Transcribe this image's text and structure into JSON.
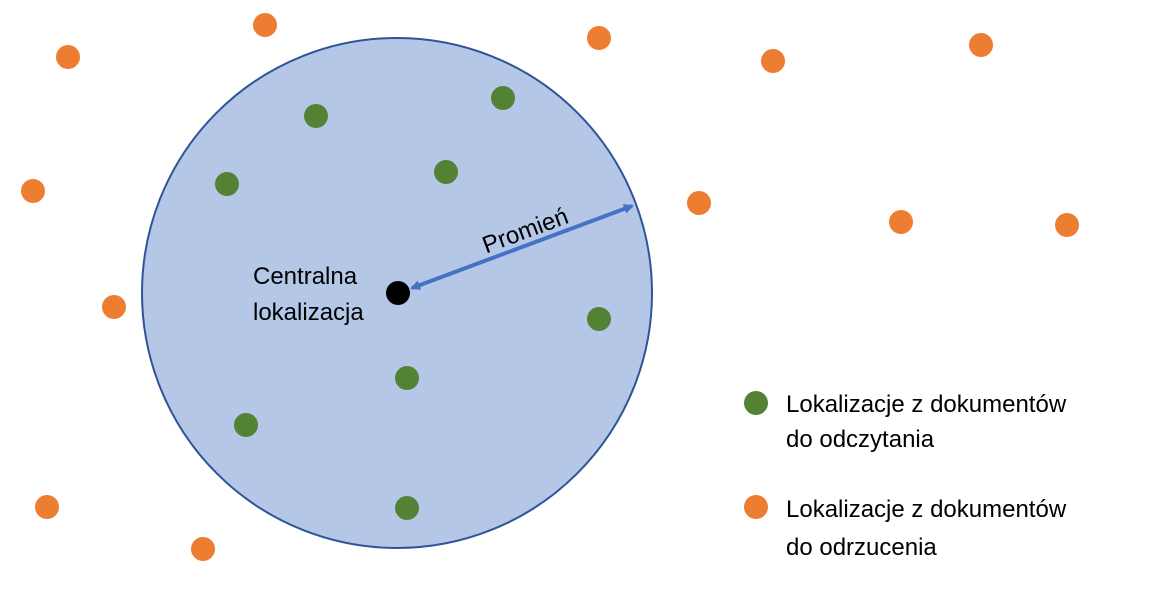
{
  "diagram": {
    "center_label_line1": "Centralna",
    "center_label_line2": "lokalizacja",
    "radius_label": "Promień",
    "legend": {
      "read_line1": "Lokalizacje z dokumentów",
      "read_line2": "do odczytania",
      "reject_line1": "Lokalizacje z dokumentów",
      "reject_line2": "do odrzucenia"
    },
    "colors": {
      "circle_fill": "#b4c7e7",
      "circle_stroke": "#2f5597",
      "read_dot": "#548235",
      "reject_dot": "#ed7d31",
      "arrow": "#4472c4",
      "center_dot": "#000000"
    }
  }
}
